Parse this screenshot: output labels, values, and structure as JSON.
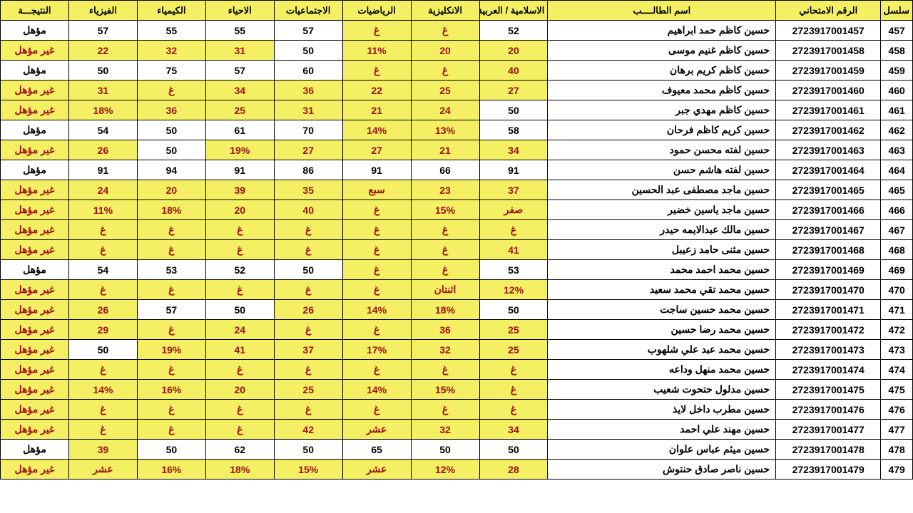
{
  "table": {
    "type": "table",
    "background_color": "#ffffff",
    "header_bg": "#f5f063",
    "highlight_bg": "#f5f063",
    "highlight_text": "#a01010",
    "border_color": "#000000",
    "font_size": 14,
    "columns": [
      {
        "key": "seq",
        "label": "سلسل",
        "width": "3.5%"
      },
      {
        "key": "exam_no",
        "label": "الرقم الامتحاني",
        "width": "11.5%"
      },
      {
        "key": "name",
        "label": "اسم الطالــــب",
        "width": "25%"
      },
      {
        "key": "islamic_arabic",
        "label": "الاسلامية / العربية",
        "width": "7.5%"
      },
      {
        "key": "english",
        "label": "الانكليزية",
        "width": "7.5%"
      },
      {
        "key": "math",
        "label": "الرياضيات",
        "width": "7.5%"
      },
      {
        "key": "social",
        "label": "الاجتماعيات",
        "width": "7.5%"
      },
      {
        "key": "biology",
        "label": "الاحياء",
        "width": "7.5%"
      },
      {
        "key": "chemistry",
        "label": "الكيمياء",
        "width": "7.5%"
      },
      {
        "key": "physics",
        "label": "الفيزياء",
        "width": "7.5%"
      },
      {
        "key": "result",
        "label": "النتيجـــة",
        "width": "7.5%"
      }
    ],
    "rows": [
      {
        "seq": "457",
        "exam_no": "2723917001457",
        "name": "حسين كاظم حمد ابراهيم",
        "cells": [
          {
            "v": "52",
            "hl": false
          },
          {
            "v": "غ",
            "hl": true
          },
          {
            "v": "غ",
            "hl": true
          },
          {
            "v": "57",
            "hl": false
          },
          {
            "v": "55",
            "hl": false
          },
          {
            "v": "55",
            "hl": false
          },
          {
            "v": "57",
            "hl": false
          },
          {
            "v": "مؤهل",
            "hl": false
          }
        ]
      },
      {
        "seq": "458",
        "exam_no": "2723917001458",
        "name": "حسين كاظم غنيم موسى",
        "cells": [
          {
            "v": "20",
            "hl": true
          },
          {
            "v": "20",
            "hl": true
          },
          {
            "v": "11%",
            "hl": true
          },
          {
            "v": "50",
            "hl": false
          },
          {
            "v": "31",
            "hl": true
          },
          {
            "v": "32",
            "hl": true
          },
          {
            "v": "22",
            "hl": true
          },
          {
            "v": "غير مؤهل",
            "hl": true
          }
        ]
      },
      {
        "seq": "459",
        "exam_no": "2723917001459",
        "name": "حسين كاظم كريم برهان",
        "cells": [
          {
            "v": "40",
            "hl": true
          },
          {
            "v": "غ",
            "hl": true
          },
          {
            "v": "غ",
            "hl": true
          },
          {
            "v": "60",
            "hl": false
          },
          {
            "v": "57",
            "hl": false
          },
          {
            "v": "75",
            "hl": false
          },
          {
            "v": "50",
            "hl": false
          },
          {
            "v": "مؤهل",
            "hl": false
          }
        ]
      },
      {
        "seq": "460",
        "exam_no": "2723917001460",
        "name": "حسين كاظم محمد معيوف",
        "cells": [
          {
            "v": "27",
            "hl": true
          },
          {
            "v": "25",
            "hl": true
          },
          {
            "v": "22",
            "hl": true
          },
          {
            "v": "36",
            "hl": true
          },
          {
            "v": "34",
            "hl": true
          },
          {
            "v": "غ",
            "hl": true
          },
          {
            "v": "31",
            "hl": true
          },
          {
            "v": "غير مؤهل",
            "hl": true
          }
        ]
      },
      {
        "seq": "461",
        "exam_no": "2723917001461",
        "name": "حسين كاظم مهدي جبر",
        "cells": [
          {
            "v": "50",
            "hl": false
          },
          {
            "v": "24",
            "hl": true
          },
          {
            "v": "21",
            "hl": true
          },
          {
            "v": "31",
            "hl": true
          },
          {
            "v": "25",
            "hl": true
          },
          {
            "v": "36",
            "hl": true
          },
          {
            "v": "18%",
            "hl": true
          },
          {
            "v": "غير مؤهل",
            "hl": true
          }
        ]
      },
      {
        "seq": "462",
        "exam_no": "2723917001462",
        "name": "حسين كريم كاظم فرحان",
        "cells": [
          {
            "v": "58",
            "hl": false
          },
          {
            "v": "13%",
            "hl": true
          },
          {
            "v": "14%",
            "hl": true
          },
          {
            "v": "70",
            "hl": false
          },
          {
            "v": "61",
            "hl": false
          },
          {
            "v": "50",
            "hl": false
          },
          {
            "v": "54",
            "hl": false
          },
          {
            "v": "مؤهل",
            "hl": false
          }
        ]
      },
      {
        "seq": "463",
        "exam_no": "2723917001463",
        "name": "حسين لفته محسن حمود",
        "cells": [
          {
            "v": "34",
            "hl": true
          },
          {
            "v": "21",
            "hl": true
          },
          {
            "v": "27",
            "hl": true
          },
          {
            "v": "27",
            "hl": true
          },
          {
            "v": "19%",
            "hl": true
          },
          {
            "v": "50",
            "hl": false
          },
          {
            "v": "26",
            "hl": true
          },
          {
            "v": "غير مؤهل",
            "hl": true
          }
        ]
      },
      {
        "seq": "464",
        "exam_no": "2723917001464",
        "name": "حسين لفته هاشم حسن",
        "cells": [
          {
            "v": "91",
            "hl": false
          },
          {
            "v": "66",
            "hl": false
          },
          {
            "v": "91",
            "hl": false
          },
          {
            "v": "86",
            "hl": false
          },
          {
            "v": "91",
            "hl": false
          },
          {
            "v": "94",
            "hl": false
          },
          {
            "v": "91",
            "hl": false
          },
          {
            "v": "مؤهل",
            "hl": false
          }
        ]
      },
      {
        "seq": "465",
        "exam_no": "2723917001465",
        "name": "حسين ماجد مصطفى عبد الحسين",
        "cells": [
          {
            "v": "37",
            "hl": true
          },
          {
            "v": "23",
            "hl": true
          },
          {
            "v": "سبع",
            "hl": true
          },
          {
            "v": "35",
            "hl": true
          },
          {
            "v": "39",
            "hl": true
          },
          {
            "v": "20",
            "hl": true
          },
          {
            "v": "24",
            "hl": true
          },
          {
            "v": "غير مؤهل",
            "hl": true
          }
        ]
      },
      {
        "seq": "466",
        "exam_no": "2723917001466",
        "name": "حسين ماجد ياسين خضير",
        "cells": [
          {
            "v": "صفر",
            "hl": true
          },
          {
            "v": "15%",
            "hl": true
          },
          {
            "v": "غ",
            "hl": true
          },
          {
            "v": "40",
            "hl": true
          },
          {
            "v": "20",
            "hl": true
          },
          {
            "v": "18%",
            "hl": true
          },
          {
            "v": "11%",
            "hl": true
          },
          {
            "v": "غير مؤهل",
            "hl": true
          }
        ]
      },
      {
        "seq": "467",
        "exam_no": "2723917001467",
        "name": "حسين مالك عبدالايمه حيدر",
        "cells": [
          {
            "v": "غ",
            "hl": true
          },
          {
            "v": "غ",
            "hl": true
          },
          {
            "v": "غ",
            "hl": true
          },
          {
            "v": "غ",
            "hl": true
          },
          {
            "v": "غ",
            "hl": true
          },
          {
            "v": "غ",
            "hl": true
          },
          {
            "v": "غ",
            "hl": true
          },
          {
            "v": "غير مؤهل",
            "hl": true
          }
        ]
      },
      {
        "seq": "468",
        "exam_no": "2723917001468",
        "name": "حسين مثنى حامد زعيبل",
        "cells": [
          {
            "v": "41",
            "hl": true
          },
          {
            "v": "غ",
            "hl": true
          },
          {
            "v": "غ",
            "hl": true
          },
          {
            "v": "غ",
            "hl": true
          },
          {
            "v": "غ",
            "hl": true
          },
          {
            "v": "غ",
            "hl": true
          },
          {
            "v": "غ",
            "hl": true
          },
          {
            "v": "غير مؤهل",
            "hl": true
          }
        ]
      },
      {
        "seq": "469",
        "exam_no": "2723917001469",
        "name": "حسين محمد احمد محمد",
        "cells": [
          {
            "v": "53",
            "hl": false
          },
          {
            "v": "غ",
            "hl": true
          },
          {
            "v": "غ",
            "hl": true
          },
          {
            "v": "50",
            "hl": false
          },
          {
            "v": "52",
            "hl": false
          },
          {
            "v": "53",
            "hl": false
          },
          {
            "v": "54",
            "hl": false
          },
          {
            "v": "مؤهل",
            "hl": false
          }
        ]
      },
      {
        "seq": "470",
        "exam_no": "2723917001470",
        "name": "حسين محمد تقي محمد سعيد",
        "cells": [
          {
            "v": "12%",
            "hl": true
          },
          {
            "v": "اثنتان",
            "hl": true
          },
          {
            "v": "غ",
            "hl": true
          },
          {
            "v": "غ",
            "hl": true
          },
          {
            "v": "غ",
            "hl": true
          },
          {
            "v": "غ",
            "hl": true
          },
          {
            "v": "غ",
            "hl": true
          },
          {
            "v": "غير مؤهل",
            "hl": true
          }
        ]
      },
      {
        "seq": "471",
        "exam_no": "2723917001471",
        "name": "حسين محمد حسين ساجت",
        "cells": [
          {
            "v": "50",
            "hl": false
          },
          {
            "v": "18%",
            "hl": true
          },
          {
            "v": "14%",
            "hl": true
          },
          {
            "v": "26",
            "hl": true
          },
          {
            "v": "50",
            "hl": false
          },
          {
            "v": "57",
            "hl": false
          },
          {
            "v": "26",
            "hl": true
          },
          {
            "v": "غير مؤهل",
            "hl": true
          }
        ]
      },
      {
        "seq": "472",
        "exam_no": "2723917001472",
        "name": "حسين محمد رضا حسين",
        "cells": [
          {
            "v": "25",
            "hl": true
          },
          {
            "v": "36",
            "hl": true
          },
          {
            "v": "غ",
            "hl": true
          },
          {
            "v": "غ",
            "hl": true
          },
          {
            "v": "24",
            "hl": true
          },
          {
            "v": "غ",
            "hl": true
          },
          {
            "v": "29",
            "hl": true
          },
          {
            "v": "غير مؤهل",
            "hl": true
          }
        ]
      },
      {
        "seq": "473",
        "exam_no": "2723917001473",
        "name": "حسين محمد عبد علي شلهوب",
        "cells": [
          {
            "v": "25",
            "hl": true
          },
          {
            "v": "32",
            "hl": true
          },
          {
            "v": "17%",
            "hl": true
          },
          {
            "v": "37",
            "hl": true
          },
          {
            "v": "41",
            "hl": true
          },
          {
            "v": "19%",
            "hl": true
          },
          {
            "v": "50",
            "hl": false
          },
          {
            "v": "غير مؤهل",
            "hl": true
          }
        ]
      },
      {
        "seq": "474",
        "exam_no": "2723917001474",
        "name": "حسين محمد منهل وداعه",
        "cells": [
          {
            "v": "غ",
            "hl": true
          },
          {
            "v": "غ",
            "hl": true
          },
          {
            "v": "غ",
            "hl": true
          },
          {
            "v": "غ",
            "hl": true
          },
          {
            "v": "غ",
            "hl": true
          },
          {
            "v": "غ",
            "hl": true
          },
          {
            "v": "غ",
            "hl": true
          },
          {
            "v": "غير مؤهل",
            "hl": true
          }
        ]
      },
      {
        "seq": "475",
        "exam_no": "2723917001475",
        "name": "حسين مدلول حتحوت شعيب",
        "cells": [
          {
            "v": "غ",
            "hl": true
          },
          {
            "v": "15%",
            "hl": true
          },
          {
            "v": "14%",
            "hl": true
          },
          {
            "v": "25",
            "hl": true
          },
          {
            "v": "20",
            "hl": true
          },
          {
            "v": "16%",
            "hl": true
          },
          {
            "v": "14%",
            "hl": true
          },
          {
            "v": "غير مؤهل",
            "hl": true
          }
        ]
      },
      {
        "seq": "476",
        "exam_no": "2723917001476",
        "name": "حسين مطرب داخل لايذ",
        "cells": [
          {
            "v": "غ",
            "hl": true
          },
          {
            "v": "غ",
            "hl": true
          },
          {
            "v": "غ",
            "hl": true
          },
          {
            "v": "غ",
            "hl": true
          },
          {
            "v": "غ",
            "hl": true
          },
          {
            "v": "غ",
            "hl": true
          },
          {
            "v": "غ",
            "hl": true
          },
          {
            "v": "غير مؤهل",
            "hl": true
          }
        ]
      },
      {
        "seq": "477",
        "exam_no": "2723917001477",
        "name": "حسين مهند علي احمد",
        "cells": [
          {
            "v": "34",
            "hl": true
          },
          {
            "v": "32",
            "hl": true
          },
          {
            "v": "عشر",
            "hl": true
          },
          {
            "v": "42",
            "hl": true
          },
          {
            "v": "غ",
            "hl": true
          },
          {
            "v": "غ",
            "hl": true
          },
          {
            "v": "غ",
            "hl": true
          },
          {
            "v": "غير مؤهل",
            "hl": true
          }
        ]
      },
      {
        "seq": "478",
        "exam_no": "2723917001478",
        "name": "حسين ميثم عباس علوان",
        "cells": [
          {
            "v": "50",
            "hl": false
          },
          {
            "v": "50",
            "hl": false
          },
          {
            "v": "65",
            "hl": false
          },
          {
            "v": "50",
            "hl": false
          },
          {
            "v": "62",
            "hl": false
          },
          {
            "v": "50",
            "hl": false
          },
          {
            "v": "39",
            "hl": true
          },
          {
            "v": "مؤهل",
            "hl": false
          }
        ]
      },
      {
        "seq": "479",
        "exam_no": "2723917001479",
        "name": "حسين ناصر صادق حنتوش",
        "cells": [
          {
            "v": "28",
            "hl": true
          },
          {
            "v": "12%",
            "hl": true
          },
          {
            "v": "عشر",
            "hl": true
          },
          {
            "v": "15%",
            "hl": true
          },
          {
            "v": "18%",
            "hl": true
          },
          {
            "v": "16%",
            "hl": true
          },
          {
            "v": "عشر",
            "hl": true
          },
          {
            "v": "غير مؤهل",
            "hl": true
          }
        ]
      }
    ]
  }
}
